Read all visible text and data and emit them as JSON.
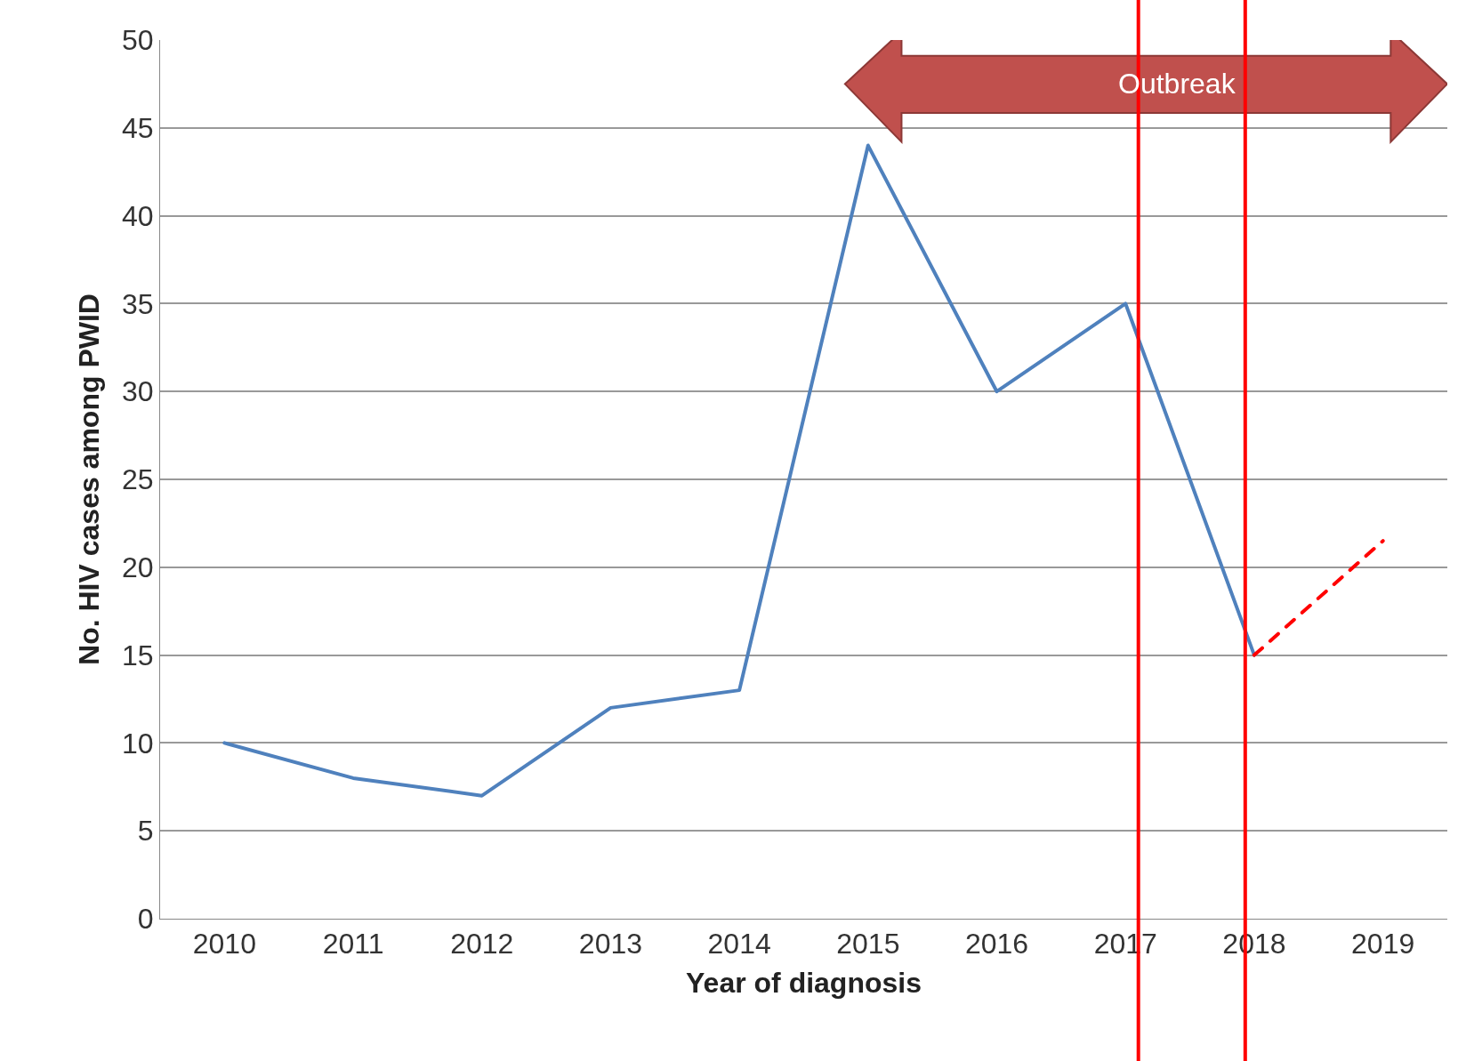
{
  "chart_data": {
    "type": "line",
    "xlabel": "Year of diagnosis",
    "ylabel": "No. HIV cases among PWID",
    "x": [
      2010,
      2011,
      2012,
      2013,
      2014,
      2015,
      2016,
      2017,
      2018
    ],
    "series": [
      {
        "color": "#4f81bd",
        "values": [
          10,
          8,
          7,
          12,
          13,
          44,
          30,
          35,
          15
        ]
      },
      {
        "color": "#ff0000",
        "x": [
          2018,
          2019
        ],
        "values": [
          15,
          21.5
        ],
        "line_style": "dashed"
      }
    ],
    "xlim": [
      2009.5,
      2019.5
    ],
    "xticks": [
      2010,
      2011,
      2012,
      2013,
      2014,
      2015,
      2016,
      2017,
      2018,
      2019
    ],
    "ylim": [
      0,
      50
    ],
    "yticks": [
      0,
      5,
      10,
      15,
      20,
      25,
      30,
      35,
      40,
      45,
      50
    ],
    "grid": "y",
    "marker": "none",
    "line_style": "solid",
    "ref_lines": [
      {
        "axis": "x",
        "value": 2017.1,
        "color": "#ff0000"
      },
      {
        "axis": "x",
        "value": 2017.93,
        "color": "#ff0000"
      }
    ],
    "annotations": [
      "Outbreak"
    ]
  }
}
